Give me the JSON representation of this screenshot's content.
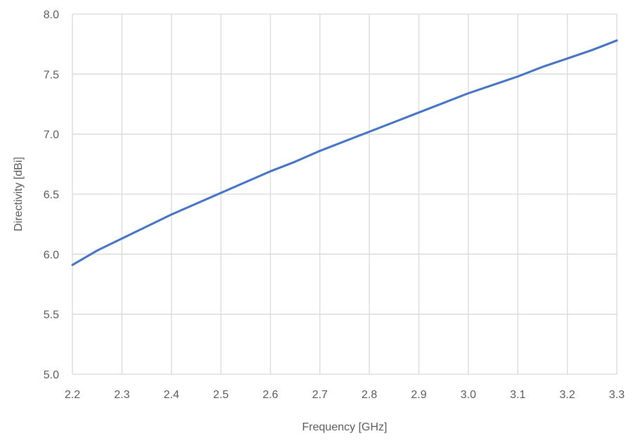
{
  "chart_data": {
    "type": "line",
    "title": "",
    "xlabel": "Frequency [GHz]",
    "ylabel": "Directivity [dBi]",
    "xlim": [
      2.2,
      3.3
    ],
    "ylim": [
      5.0,
      8.0
    ],
    "x_ticks": [
      "2.2",
      "2.3",
      "2.4",
      "2.5",
      "2.6",
      "2.7",
      "2.8",
      "2.9",
      "3.0",
      "3.1",
      "3.2",
      "3.3"
    ],
    "y_ticks": [
      "5.0",
      "5.5",
      "6.0",
      "6.5",
      "7.0",
      "7.5",
      "8.0"
    ],
    "grid": true,
    "legend": "none",
    "colors": {
      "series": "#4472C4",
      "grid": "#D9D9D9",
      "text": "#595959"
    },
    "series": [
      {
        "x": [
          2.2,
          2.25,
          2.3,
          2.35,
          2.4,
          2.45,
          2.5,
          2.55,
          2.6,
          2.65,
          2.7,
          2.75,
          2.8,
          2.85,
          2.9,
          2.95,
          3.0,
          3.05,
          3.1,
          3.15,
          3.2,
          3.25,
          3.3
        ],
        "values": [
          5.91,
          6.03,
          6.13,
          6.23,
          6.33,
          6.42,
          6.51,
          6.6,
          6.69,
          6.77,
          6.86,
          6.94,
          7.02,
          7.1,
          7.18,
          7.26,
          7.34,
          7.41,
          7.48,
          7.56,
          7.63,
          7.7,
          7.78
        ]
      }
    ]
  }
}
